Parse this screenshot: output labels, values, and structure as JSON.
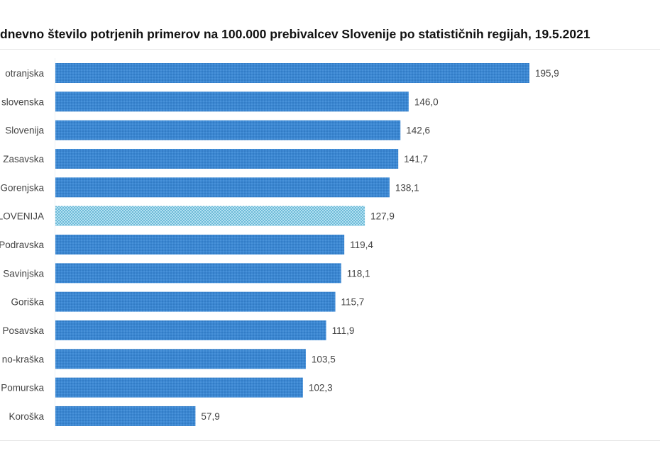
{
  "chart_data": {
    "type": "bar",
    "orientation": "horizontal",
    "title": "dnevno število potrjenih primerov na 100.000 prebivalcev Slovenije po statističnih regijah, 19.5.2021",
    "categories": [
      "otranjska",
      "slovenska",
      "Slovenija",
      "Zasavska",
      "Gorenjska",
      "LOVENIJA",
      "Podravska",
      "Savinjska",
      "Goriška",
      "Posavska",
      "no-kraška",
      "Pomurska",
      "Koroška"
    ],
    "values": [
      195.9,
      146.0,
      142.6,
      141.7,
      138.1,
      127.9,
      119.4,
      118.1,
      115.7,
      111.9,
      103.5,
      102.3,
      57.9
    ],
    "value_labels": [
      "195,9",
      "146,0",
      "142,6",
      "141,7",
      "138,1",
      "127,9",
      "119,4",
      "118,1",
      "115,7",
      "111,9",
      "103,5",
      "102,3",
      "57,9"
    ],
    "highlight_index": 5,
    "xlim": [
      0,
      196
    ],
    "colors": {
      "bar": "#3b87d2",
      "bar_dot": "#2a6fb5",
      "highlight": "#a9dcee",
      "highlight_dot": "#3a9cc4"
    },
    "grid": false,
    "legend": "none"
  }
}
